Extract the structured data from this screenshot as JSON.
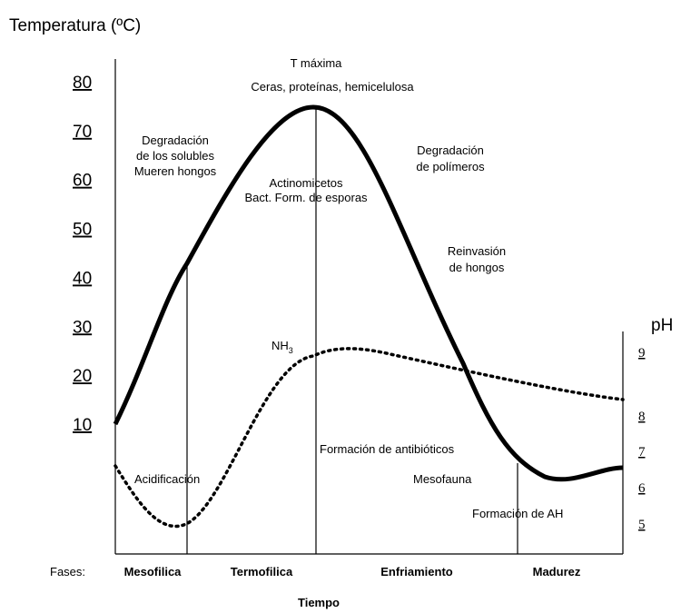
{
  "title": "Temperatura (ºC)",
  "temperature_ticks": [
    80,
    70,
    60,
    50,
    40,
    30,
    20,
    10
  ],
  "ph_title": "pH",
  "ph_ticks": [
    9,
    8,
    7,
    6,
    5
  ],
  "annotations": {
    "t_maxima": "T máxima",
    "ceras": "Ceras, proteínas, hemicelulosa",
    "degradacion_solubles": [
      "Degradación",
      "de los solubles",
      "Mueren hongos"
    ],
    "actinomicetos": [
      "Actinomicetos",
      "Bact. Form. de esporas"
    ],
    "degradacion_polimeros": [
      "Degradación",
      "de polímeros"
    ],
    "reinvasion": [
      "Reinvasión",
      "de hongos"
    ],
    "nh3": "NH",
    "nh3_sub": "3",
    "acidificacion": "Acidificación",
    "antibioticos": "Formación de antibióticos",
    "mesofauna": "Mesofauna",
    "formacion_ah": "Formación de AH"
  },
  "phases_label": "Fases:",
  "phases": [
    "Mesofilica",
    "Termofilica",
    "Enfriamiento",
    "Madurez"
  ],
  "x_label": "Tiempo"
}
